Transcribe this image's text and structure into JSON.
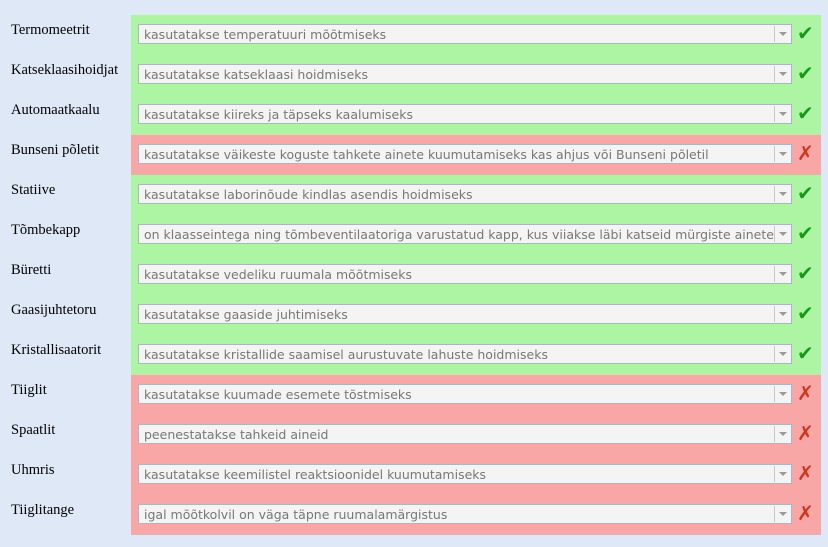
{
  "rows": [
    {
      "term": "Termomeetrit",
      "answer": "kasutatakse temperatuuri mõõtmiseks",
      "correct": true,
      "mark": "✔"
    },
    {
      "term": "Katseklaasihoidjat",
      "answer": "kasutatakse katseklaasi hoidmiseks",
      "correct": true,
      "mark": "✔"
    },
    {
      "term": "Automaatkaalu",
      "answer": "kasutatakse kiireks ja täpseks kaalumiseks",
      "correct": true,
      "mark": "✔"
    },
    {
      "term": "Bunseni põletit",
      "answer": "kasutatakse väikeste koguste tahkete ainete kuumutamiseks kas ahjus või Bunseni põletil",
      "correct": false,
      "mark": "✗"
    },
    {
      "term": "Statiive",
      "answer": "kasutatakse laborinõude kindlas asendis hoidmiseks",
      "correct": true,
      "mark": "✔"
    },
    {
      "term": "Tõmbekapp",
      "answer": "on klaasseintega ning tõmbeventilaatoriga varustatud kapp, kus viiakse läbi katseid mürgiste ainetega",
      "correct": true,
      "mark": "✔"
    },
    {
      "term": "Büretti",
      "answer": "kasutatakse vedeliku ruumala mõõtmiseks",
      "correct": true,
      "mark": "✔"
    },
    {
      "term": "Gaasijuhtetoru",
      "answer": "kasutatakse gaaside juhtimiseks",
      "correct": true,
      "mark": "✔"
    },
    {
      "term": "Kristallisaatorit",
      "answer": "kasutatakse kristallide saamisel aurustuvate lahuste hoidmiseks",
      "correct": true,
      "mark": "✔"
    },
    {
      "term": "Tiiglit",
      "answer": "kasutatakse kuumade esemete tõstmiseks",
      "correct": false,
      "mark": "✗"
    },
    {
      "term": "Spaatlit",
      "answer": "peenestatakse tahkeid aineid",
      "correct": false,
      "mark": "✗"
    },
    {
      "term": "Uhmris",
      "answer": "kasutatakse keemilistel reaktsioonidel kuumutamiseks",
      "correct": false,
      "mark": "✗"
    },
    {
      "term": "Tiiglitange",
      "answer": "igal mõõtkolvil on väga täpne ruumalamärgistus",
      "correct": false,
      "mark": "✗"
    }
  ],
  "colors": {
    "correct_bg": "#aef5a3",
    "incorrect_bg": "#f8a6a6",
    "check": "#169b16",
    "cross": "#d0341c"
  },
  "icons": {
    "correct": "check-icon",
    "incorrect": "cross-icon"
  }
}
